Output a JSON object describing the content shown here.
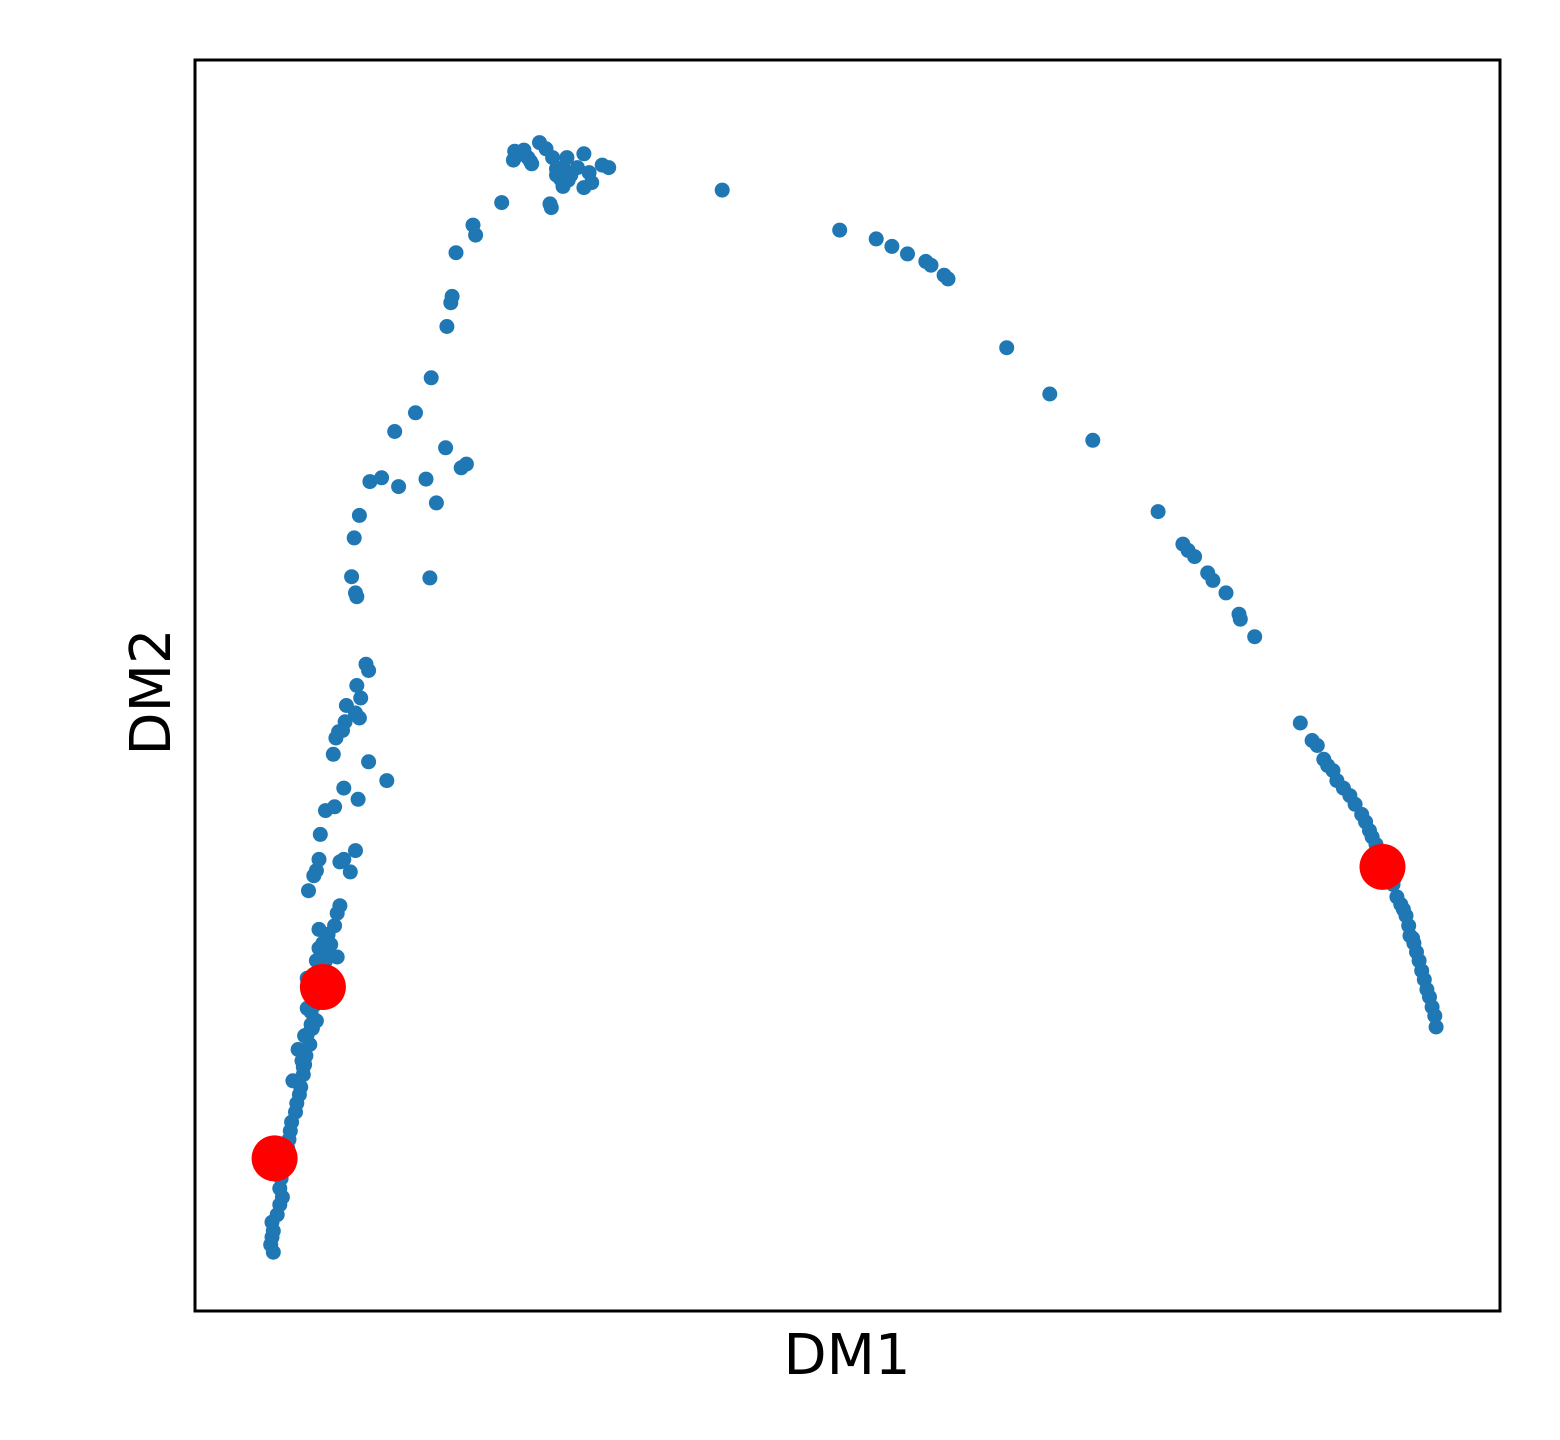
{
  "chart_data": {
    "type": "scatter",
    "title": "",
    "xlabel": "DM1",
    "ylabel": "DM2",
    "xlim": [
      0,
      100
    ],
    "ylim": [
      0,
      100
    ],
    "ticks": "none",
    "grid": false,
    "legend": "none",
    "colors": {
      "points": "#1f77b4",
      "highlight": "#ff0000",
      "frame": "#000000"
    },
    "series": [
      {
        "marker": "small-dot",
        "points": [
          [
            6.0,
            4.7
          ],
          [
            5.8,
            5.3
          ],
          [
            5.9,
            5.9
          ],
          [
            6.0,
            6.4
          ],
          [
            5.9,
            7.1
          ],
          [
            6.3,
            7.7
          ],
          [
            6.5,
            8.5
          ],
          [
            6.7,
            9.1
          ],
          [
            6.5,
            9.8
          ],
          [
            6.6,
            10.6
          ],
          [
            6.7,
            11.3
          ],
          [
            6.9,
            12.2
          ],
          [
            7.1,
            13.0
          ],
          [
            7.2,
            13.7
          ],
          [
            7.3,
            14.4
          ],
          [
            7.4,
            15.1
          ],
          [
            7.7,
            15.9
          ],
          [
            7.8,
            16.6
          ],
          [
            8.0,
            17.3
          ],
          [
            8.1,
            17.9
          ],
          [
            7.5,
            18.4
          ],
          [
            8.3,
            18.9
          ],
          [
            8.4,
            19.7
          ],
          [
            8.5,
            20.4
          ],
          [
            7.9,
            20.9
          ],
          [
            8.8,
            21.3
          ],
          [
            8.6,
            22.1
          ],
          [
            9.0,
            22.6
          ],
          [
            9.3,
            23.2
          ],
          [
            8.9,
            23.9
          ],
          [
            9.2,
            24.5
          ],
          [
            9.6,
            25.1
          ],
          [
            9.4,
            25.9
          ],
          [
            8.6,
            26.6
          ],
          [
            9.7,
            26.3
          ],
          [
            8.2,
            20.0
          ],
          [
            8.6,
            24.2
          ],
          [
            9.9,
            27.2
          ],
          [
            10.0,
            28.0
          ],
          [
            10.3,
            28.6
          ],
          [
            9.5,
            29.0
          ],
          [
            9.8,
            29.4
          ],
          [
            10.2,
            30.1
          ],
          [
            10.4,
            29.3
          ],
          [
            10.2,
            28.3
          ],
          [
            10.7,
            30.8
          ],
          [
            10.9,
            31.8
          ],
          [
            11.1,
            32.4
          ],
          [
            8.3,
            19.5
          ],
          [
            8.9,
            22.9
          ],
          [
            9.3,
            28.0
          ],
          [
            8.4,
            22.0
          ],
          [
            9.5,
            30.5
          ],
          [
            10.9,
            28.3
          ],
          [
            8.7,
            33.6
          ],
          [
            9.1,
            34.8
          ],
          [
            9.3,
            35.2
          ],
          [
            11.1,
            35.9
          ],
          [
            11.4,
            36.1
          ],
          [
            11.9,
            35.1
          ],
          [
            12.3,
            36.8
          ],
          [
            9.5,
            36.1
          ],
          [
            9.6,
            38.1
          ],
          [
            10.0,
            40.0
          ],
          [
            10.7,
            40.3
          ],
          [
            11.4,
            41.8
          ],
          [
            12.5,
            40.9
          ],
          [
            13.3,
            43.9
          ],
          [
            14.7,
            42.4
          ],
          [
            10.6,
            44.5
          ],
          [
            10.8,
            45.8
          ],
          [
            11.0,
            46.3
          ],
          [
            11.3,
            46.4
          ],
          [
            11.5,
            47.1
          ],
          [
            11.6,
            48.4
          ],
          [
            12.3,
            47.8
          ],
          [
            12.7,
            49.0
          ],
          [
            12.6,
            47.4
          ],
          [
            12.4,
            50.0
          ],
          [
            13.1,
            51.7
          ],
          [
            13.3,
            51.2
          ],
          [
            12.4,
            57.1
          ],
          [
            12.3,
            57.4
          ],
          [
            12.0,
            58.7
          ],
          [
            12.2,
            61.8
          ],
          [
            12.6,
            63.6
          ],
          [
            13.4,
            66.3
          ],
          [
            14.3,
            66.6
          ],
          [
            15.6,
            65.9
          ],
          [
            15.3,
            70.3
          ],
          [
            16.9,
            71.8
          ],
          [
            18.1,
            74.6
          ],
          [
            19.3,
            78.7
          ],
          [
            19.6,
            80.6
          ],
          [
            19.7,
            81.1
          ],
          [
            20.0,
            84.6
          ],
          [
            21.3,
            86.8
          ],
          [
            21.5,
            86.0
          ],
          [
            23.5,
            88.6
          ],
          [
            24.4,
            92.0
          ],
          [
            24.7,
            92.4
          ],
          [
            25.2,
            92.8
          ],
          [
            25.5,
            92.2
          ],
          [
            25.0,
            92.6
          ],
          [
            24.5,
            92.7
          ],
          [
            25.7,
            91.9
          ],
          [
            26.4,
            93.4
          ],
          [
            26.9,
            92.9
          ],
          [
            27.4,
            92.2
          ],
          [
            28.2,
            91.4
          ],
          [
            27.7,
            91.3
          ],
          [
            28.4,
            90.9
          ],
          [
            28.6,
            90.4
          ],
          [
            28.8,
            90.8
          ],
          [
            29.3,
            91.4
          ],
          [
            27.7,
            90.8
          ],
          [
            28.5,
            92.2
          ],
          [
            29.8,
            92.5
          ],
          [
            30.2,
            91.0
          ],
          [
            31.2,
            91.6
          ],
          [
            31.7,
            91.4
          ],
          [
            30.4,
            90.2
          ],
          [
            29.8,
            89.8
          ],
          [
            28.0,
            90.5
          ],
          [
            27.2,
            88.5
          ],
          [
            27.3,
            88.2
          ],
          [
            28.2,
            89.9
          ],
          [
            25.8,
            91.7
          ],
          [
            17.7,
            66.5
          ],
          [
            18.5,
            64.6
          ],
          [
            20.4,
            67.4
          ],
          [
            20.8,
            67.7
          ],
          [
            19.2,
            69.0
          ],
          [
            18.0,
            58.6
          ],
          [
            40.4,
            89.6
          ],
          [
            49.4,
            86.4
          ],
          [
            52.2,
            85.7
          ],
          [
            53.4,
            85.1
          ],
          [
            54.6,
            84.5
          ],
          [
            56.0,
            83.9
          ],
          [
            56.4,
            83.6
          ],
          [
            57.4,
            82.8
          ],
          [
            57.7,
            82.5
          ],
          [
            62.2,
            77.0
          ],
          [
            65.5,
            73.3
          ],
          [
            68.8,
            69.6
          ],
          [
            73.8,
            63.9
          ],
          [
            75.7,
            61.3
          ],
          [
            76.1,
            60.8
          ],
          [
            76.6,
            60.3
          ],
          [
            77.6,
            59.0
          ],
          [
            78.0,
            58.4
          ],
          [
            79.0,
            57.4
          ],
          [
            80.0,
            55.7
          ],
          [
            80.1,
            55.3
          ],
          [
            81.2,
            53.9
          ],
          [
            84.7,
            47.0
          ],
          [
            85.6,
            45.6
          ],
          [
            86.0,
            45.2
          ],
          [
            86.5,
            44.1
          ],
          [
            86.8,
            43.6
          ],
          [
            87.2,
            43.2
          ],
          [
            87.5,
            42.4
          ],
          [
            88.0,
            41.8
          ],
          [
            88.5,
            41.2
          ],
          [
            88.9,
            40.5
          ],
          [
            89.4,
            39.7
          ],
          [
            89.7,
            39.1
          ],
          [
            90.0,
            38.4
          ],
          [
            90.2,
            37.9
          ],
          [
            90.5,
            37.3
          ],
          [
            90.8,
            36.8
          ],
          [
            91.0,
            36.1
          ],
          [
            91.3,
            35.5
          ],
          [
            91.6,
            34.7
          ],
          [
            91.8,
            34.1
          ],
          [
            92.1,
            33.1
          ],
          [
            92.4,
            32.5
          ],
          [
            92.8,
            31.6
          ],
          [
            93.0,
            30.8
          ],
          [
            93.1,
            30.0
          ],
          [
            93.4,
            29.4
          ],
          [
            93.6,
            28.7
          ],
          [
            93.8,
            28.0
          ],
          [
            94.0,
            27.2
          ],
          [
            94.2,
            26.5
          ],
          [
            94.4,
            25.7
          ],
          [
            94.6,
            25.1
          ],
          [
            94.8,
            24.3
          ],
          [
            95.0,
            23.6
          ],
          [
            95.1,
            22.7
          ],
          [
            91.9,
            34.6
          ],
          [
            92.6,
            32.1
          ],
          [
            93.3,
            29.8
          ]
        ]
      },
      {
        "marker": "large-dot",
        "points": [
          [
            6.1,
            12.2
          ],
          [
            9.8,
            25.9
          ],
          [
            91.0,
            35.5
          ]
        ]
      }
    ]
  }
}
